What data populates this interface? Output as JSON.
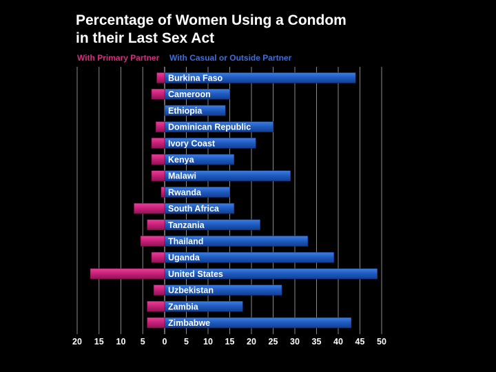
{
  "chart_data": {
    "type": "bar",
    "orientation": "horizontal-diverging",
    "title": [
      "Percentage of Women Using a Condom",
      "in their Last Sex Act"
    ],
    "legend_position": "top-left",
    "grid": true,
    "categories": [
      "Burkina Faso",
      "Cameroon",
      "Ethiopia",
      "Dominican Republic",
      "Ivory Coast",
      "Kenya",
      "Malawi",
      "Rwanda",
      "South Africa",
      "Tanzania",
      "Thailand",
      "Uganda",
      "United States",
      "Uzbekistan",
      "Zambia",
      "Zimbabwe"
    ],
    "series": [
      {
        "name": "With Primary Partner",
        "direction": "left",
        "color": "#d02580",
        "values": [
          1.8,
          3,
          0,
          2,
          3,
          3,
          3,
          0.8,
          7,
          4,
          5.5,
          3,
          17,
          2.5,
          4,
          4
        ]
      },
      {
        "name": "With Casual or Outside Partner",
        "direction": "right",
        "color": "#1f5fc0",
        "values": [
          44,
          15,
          14,
          25,
          21,
          16,
          29,
          15,
          16,
          22,
          33,
          39,
          49,
          27,
          18,
          43
        ]
      }
    ],
    "xlim_left": [
      20,
      0
    ],
    "xlim_right": [
      0,
      50
    ],
    "left_ticks": [
      "20",
      "15",
      "10",
      "5",
      "0"
    ],
    "right_ticks": [
      "5",
      "10",
      "15",
      "20",
      "25",
      "30",
      "35",
      "40",
      "45",
      "50"
    ],
    "xlabel": "",
    "ylabel": ""
  }
}
